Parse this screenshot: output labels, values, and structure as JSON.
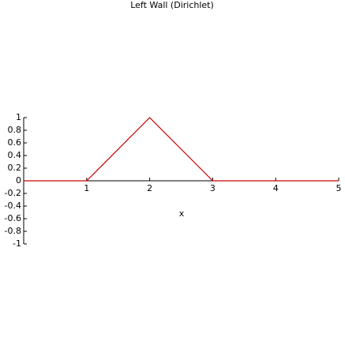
{
  "chart_data": {
    "type": "line",
    "title": "Left Wall (Dirichlet)",
    "x_label": "x",
    "x": [
      0,
      1,
      2,
      3,
      5
    ],
    "series": [
      {
        "color": "#cc0000",
        "values": [
          0,
          0,
          1,
          0,
          0
        ]
      }
    ],
    "xlim": [
      0,
      5
    ],
    "xticks": [
      1,
      2,
      3,
      4,
      5
    ],
    "ylim": [
      -1,
      1
    ],
    "yticks": [
      -1,
      -0.8,
      -0.6,
      -0.4,
      -0.2,
      0,
      0.2,
      0.4,
      0.6,
      0.8,
      1
    ]
  }
}
